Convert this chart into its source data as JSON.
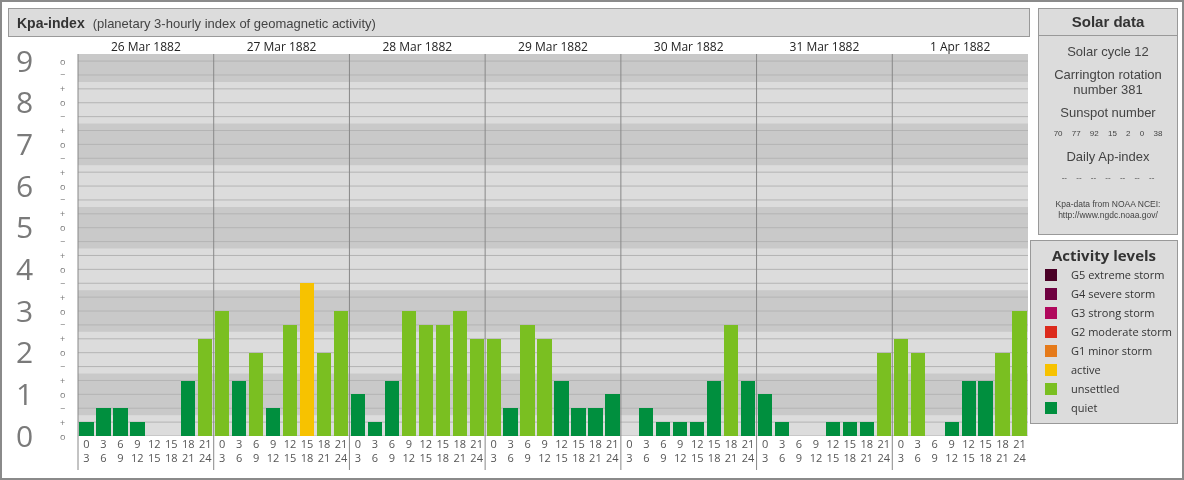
{
  "chart_data": [
    {
      "type": "bar",
      "title": "Kpa-index",
      "subtitle": "(planetary 3-hourly index of geomagnetic activity)",
      "legend_title": "Activity levels",
      "x": [
        "1882-03-26T01:30",
        "1882-03-26T04:30",
        "1882-03-26T07:30",
        "1882-03-26T10:30",
        "1882-03-26T13:30",
        "1882-03-26T16:30",
        "1882-03-26T19:30",
        "1882-03-26T22:30",
        "1882-03-27T01:30",
        "1882-03-27T04:30",
        "1882-03-27T07:30",
        "1882-03-27T10:30",
        "1882-03-27T13:30",
        "1882-03-27T16:30",
        "1882-03-27T19:30",
        "1882-03-27T22:30",
        "1882-03-28T01:30",
        "1882-03-28T04:30",
        "1882-03-28T07:30",
        "1882-03-28T10:30",
        "1882-03-28T13:30",
        "1882-03-28T16:30",
        "1882-03-28T19:30",
        "1882-03-28T22:30",
        "1882-03-29T01:30",
        "1882-03-29T04:30",
        "1882-03-29T07:30",
        "1882-03-29T10:30",
        "1882-03-29T13:30",
        "1882-03-29T16:30",
        "1882-03-29T19:30",
        "1882-03-29T22:30",
        "1882-03-30T01:30",
        "1882-03-30T04:30",
        "1882-03-30T07:30",
        "1882-03-30T10:30",
        "1882-03-30T13:30",
        "1882-03-30T16:30",
        "1882-03-30T19:30",
        "1882-03-30T22:30",
        "1882-03-31T01:30",
        "1882-03-31T04:30",
        "1882-03-31T07:30",
        "1882-03-31T10:30",
        "1882-03-31T13:30",
        "1882-03-31T16:30",
        "1882-03-31T19:30",
        "1882-03-31T22:30",
        "1882-04-01T01:30",
        "1882-04-01T04:30",
        "1882-04-01T07:30",
        "1882-04-01T10:30",
        "1882-04-01T13:30",
        "1882-04-01T16:30",
        "1882-04-01T19:30",
        "1882-04-01T22:30"
      ],
      "stacked": true,
      "series": [
        {
          "name": "G5 extreme storm",
          "color": "#4a0026",
          "values": [
            null,
            null,
            null,
            null,
            null,
            null,
            null,
            null,
            null,
            null,
            null,
            null,
            null,
            null,
            null,
            null,
            null,
            null,
            null,
            null,
            null,
            null,
            null,
            null,
            null,
            null,
            null,
            null,
            null,
            null,
            null,
            null,
            null,
            null,
            null,
            null,
            null,
            null,
            null,
            null,
            null,
            null,
            null,
            null,
            null,
            null,
            null,
            null,
            null,
            null,
            null,
            null,
            null,
            null,
            null,
            null
          ]
        },
        {
          "name": "G4 severe storm",
          "color": "#6e0040",
          "values": [
            null,
            null,
            null,
            null,
            null,
            null,
            null,
            null,
            null,
            null,
            null,
            null,
            null,
            null,
            null,
            null,
            null,
            null,
            null,
            null,
            null,
            null,
            null,
            null,
            null,
            null,
            null,
            null,
            null,
            null,
            null,
            null,
            null,
            null,
            null,
            null,
            null,
            null,
            null,
            null,
            null,
            null,
            null,
            null,
            null,
            null,
            null,
            null,
            null,
            null,
            null,
            null,
            null,
            null,
            null,
            null
          ]
        },
        {
          "name": "G3 strong storm",
          "color": "#b0085c",
          "values": [
            null,
            null,
            null,
            null,
            null,
            null,
            null,
            null,
            null,
            null,
            null,
            null,
            null,
            null,
            null,
            null,
            null,
            null,
            null,
            null,
            null,
            null,
            null,
            null,
            null,
            null,
            null,
            null,
            null,
            null,
            null,
            null,
            null,
            null,
            null,
            null,
            null,
            null,
            null,
            null,
            null,
            null,
            null,
            null,
            null,
            null,
            null,
            null,
            null,
            null,
            null,
            null,
            null,
            null,
            null,
            null
          ]
        },
        {
          "name": "G2 moderate storm",
          "color": "#dc2a1c",
          "values": [
            null,
            null,
            null,
            null,
            null,
            null,
            null,
            null,
            null,
            null,
            null,
            null,
            null,
            null,
            null,
            null,
            null,
            null,
            null,
            null,
            null,
            null,
            null,
            null,
            null,
            null,
            null,
            null,
            null,
            null,
            null,
            null,
            null,
            null,
            null,
            null,
            null,
            null,
            null,
            null,
            null,
            null,
            null,
            null,
            null,
            null,
            null,
            null,
            null,
            null,
            null,
            null,
            null,
            null,
            null,
            null
          ]
        },
        {
          "name": "G1 minor storm",
          "color": "#e57a1a",
          "values": [
            null,
            null,
            null,
            null,
            null,
            null,
            null,
            null,
            null,
            null,
            null,
            null,
            null,
            null,
            null,
            null,
            null,
            null,
            null,
            null,
            null,
            null,
            null,
            null,
            null,
            null,
            null,
            null,
            null,
            null,
            null,
            null,
            null,
            null,
            null,
            null,
            null,
            null,
            null,
            null,
            null,
            null,
            null,
            null,
            null,
            null,
            null,
            null,
            null,
            null,
            null,
            null,
            null,
            null,
            null,
            null
          ]
        },
        {
          "name": "active",
          "color": "#f7c200",
          "values": [
            null,
            null,
            null,
            null,
            null,
            null,
            null,
            null,
            null,
            null,
            null,
            null,
            null,
            3.67,
            null,
            null,
            null,
            null,
            null,
            null,
            null,
            null,
            null,
            null,
            null,
            null,
            null,
            null,
            null,
            null,
            null,
            null,
            null,
            null,
            null,
            null,
            null,
            null,
            null,
            null,
            null,
            null,
            null,
            null,
            null,
            null,
            null,
            null,
            null,
            null,
            null,
            null,
            null,
            null,
            null,
            null
          ]
        },
        {
          "name": "unsettled",
          "color": "#7abf21",
          "values": [
            null,
            null,
            null,
            null,
            null,
            null,
            null,
            2.33,
            3,
            null,
            2,
            null,
            2.67,
            null,
            2,
            3,
            null,
            null,
            null,
            3,
            2.67,
            2.67,
            3,
            2.33,
            2.33,
            null,
            2.67,
            2.33,
            null,
            null,
            null,
            null,
            null,
            null,
            null,
            null,
            null,
            null,
            2.67,
            null,
            null,
            null,
            null,
            null,
            null,
            null,
            null,
            2,
            2.33,
            2,
            null,
            null,
            null,
            null,
            2,
            3
          ]
        },
        {
          "name": "quiet",
          "color": "#008f3e",
          "values": [
            0.33,
            0.67,
            0.67,
            0.33,
            0,
            0,
            1.33,
            null,
            null,
            1.33,
            null,
            0.67,
            null,
            null,
            null,
            null,
            1,
            0.33,
            1.33,
            null,
            null,
            null,
            null,
            null,
            null,
            0.67,
            null,
            null,
            1.33,
            0.67,
            0.67,
            1,
            0,
            0.67,
            0.33,
            0.33,
            0.33,
            1.33,
            null,
            1.33,
            1,
            0.33,
            0,
            0,
            0.33,
            0.33,
            0.33,
            null,
            null,
            null,
            0,
            0.33,
            1.33,
            1.33,
            null,
            null
          ]
        }
      ],
      "xlim": [
        "1882-03-26T00:00",
        "1882-04-02T00:00"
      ],
      "xticks": [
        {
          "value": "1882-03-26T01:30",
          "label": "0\n3"
        },
        {
          "value": "1882-03-26T04:30",
          "label": "3\n6"
        },
        {
          "value": "1882-03-26T07:30",
          "label": "6\n9"
        },
        {
          "value": "1882-03-26T10:30",
          "label": "9\n12"
        },
        {
          "value": "1882-03-26T13:30",
          "label": "12\n15"
        },
        {
          "value": "1882-03-26T16:30",
          "label": "15\n18"
        },
        {
          "value": "1882-03-26T19:30",
          "label": "18\n21"
        },
        {
          "value": "1882-03-26T22:30",
          "label": "21\n24"
        },
        {
          "value": "1882-03-27T01:30",
          "label": "0\n3"
        },
        {
          "value": "1882-03-27T04:30",
          "label": "3\n6"
        },
        {
          "value": "1882-03-27T07:30",
          "label": "6\n9"
        },
        {
          "value": "1882-03-27T10:30",
          "label": "9\n12"
        },
        {
          "value": "1882-03-27T13:30",
          "label": "12\n15"
        },
        {
          "value": "1882-03-27T16:30",
          "label": "15\n18"
        },
        {
          "value": "1882-03-27T19:30",
          "label": "18\n21"
        },
        {
          "value": "1882-03-27T22:30",
          "label": "21\n24"
        },
        {
          "value": "1882-03-28T01:30",
          "label": "0\n3"
        },
        {
          "value": "1882-03-28T04:30",
          "label": "3\n6"
        },
        {
          "value": "1882-03-28T07:30",
          "label": "6\n9"
        },
        {
          "value": "1882-03-28T10:30",
          "label": "9\n12"
        },
        {
          "value": "1882-03-28T13:30",
          "label": "12\n15"
        },
        {
          "value": "1882-03-28T16:30",
          "label": "15\n18"
        },
        {
          "value": "1882-03-28T19:30",
          "label": "18\n21"
        },
        {
          "value": "1882-03-28T22:30",
          "label": "21\n24"
        },
        {
          "value": "1882-03-29T01:30",
          "label": "0\n3"
        },
        {
          "value": "1882-03-29T04:30",
          "label": "3\n6"
        },
        {
          "value": "1882-03-29T07:30",
          "label": "6\n9"
        },
        {
          "value": "1882-03-29T10:30",
          "label": "9\n12"
        },
        {
          "value": "1882-03-29T13:30",
          "label": "12\n15"
        },
        {
          "value": "1882-03-29T16:30",
          "label": "15\n18"
        },
        {
          "value": "1882-03-29T19:30",
          "label": "18\n21"
        },
        {
          "value": "1882-03-29T22:30",
          "label": "21\n24"
        },
        {
          "value": "1882-03-30T01:30",
          "label": "0\n3"
        },
        {
          "value": "1882-03-30T04:30",
          "label": "3\n6"
        },
        {
          "value": "1882-03-30T07:30",
          "label": "6\n9"
        },
        {
          "value": "1882-03-30T10:30",
          "label": "9\n12"
        },
        {
          "value": "1882-03-30T13:30",
          "label": "12\n15"
        },
        {
          "value": "1882-03-30T16:30",
          "label": "15\n18"
        },
        {
          "value": "1882-03-30T19:30",
          "label": "18\n21"
        },
        {
          "value": "1882-03-30T22:30",
          "label": "21\n24"
        },
        {
          "value": "1882-03-31T01:30",
          "label": "0\n3"
        },
        {
          "value": "1882-03-31T04:30",
          "label": "3\n6"
        },
        {
          "value": "1882-03-31T07:30",
          "label": "6\n9"
        },
        {
          "value": "1882-03-31T10:30",
          "label": "9\n12"
        },
        {
          "value": "1882-03-31T13:30",
          "label": "12\n15"
        },
        {
          "value": "1882-03-31T16:30",
          "label": "15\n18"
        },
        {
          "value": "1882-03-31T19:30",
          "label": "18\n21"
        },
        {
          "value": "1882-03-31T22:30",
          "label": "21\n24"
        },
        {
          "value": "1882-04-01T01:30",
          "label": "0\n3"
        },
        {
          "value": "1882-04-01T04:30",
          "label": "3\n6"
        },
        {
          "value": "1882-04-01T07:30",
          "label": "6\n9"
        },
        {
          "value": "1882-04-01T10:30",
          "label": "9\n12"
        },
        {
          "value": "1882-04-01T13:30",
          "label": "12\n15"
        },
        {
          "value": "1882-04-01T16:30",
          "label": "15\n18"
        },
        {
          "value": "1882-04-01T19:30",
          "label": "18\n21"
        },
        {
          "value": "1882-04-01T22:30",
          "label": "21\n24"
        }
      ],
      "x2lim": [
        "1882-03-26T00:00",
        "1882-04-02T00:00"
      ],
      "x2ticks": [
        {
          "value": "1882-03-26T12:00",
          "label": "26 Mar 1882"
        },
        {
          "value": "1882-03-27T12:00",
          "label": "27 Mar 1882"
        },
        {
          "value": "1882-03-28T12:00",
          "label": "28 Mar 1882"
        },
        {
          "value": "1882-03-29T12:00",
          "label": "29 Mar 1882"
        },
        {
          "value": "1882-03-30T12:00",
          "label": "30 Mar 1882"
        },
        {
          "value": "1882-03-31T12:00",
          "label": "31 Mar 1882"
        },
        {
          "value": "1882-04-01T12:00",
          "label": "1 Apr 1882"
        }
      ],
      "ylim": [
        0,
        9.17
      ],
      "yticks": [
        0,
        1,
        2,
        3,
        4,
        5,
        6,
        7,
        8,
        9
      ],
      "bands": [
        {
          "axis": "y",
          "from": 0.5,
          "to": 1.5,
          "color": "#c9c9c9"
        },
        {
          "axis": "y",
          "from": 2.5,
          "to": 3.5,
          "color": "#c9c9c9"
        },
        {
          "axis": "y",
          "from": 4.5,
          "to": 5.5,
          "color": "#c9c9c9"
        },
        {
          "axis": "y",
          "from": 6.5,
          "to": 7.5,
          "color": "#c9c9c9"
        },
        {
          "axis": "y",
          "from": 8.5,
          "to": 9.17,
          "color": "#c9c9c9"
        }
      ],
      "grid": true,
      "legend": "right",
      "annotations": [
        "o",
        "+",
        "−",
        "o",
        "+",
        "−",
        "o",
        "+",
        "−",
        "o",
        "+",
        "−",
        "o",
        "+",
        "−",
        "o",
        "+",
        "−",
        "o",
        "+",
        "−",
        "o",
        "+",
        "−",
        "o",
        "+",
        "−",
        "o"
      ]
    },
    {
      "type": "other",
      "title": "Solar data",
      "annotations": [
        "Solar cycle 12",
        "Carrington rotation number 381",
        "Sunspot number",
        "70 77 92 15 2 0 38",
        "Daily Ap-index",
        "-- -- -- -- -- -- --",
        "Kpa-data from NOAA NCEI: http://www.ngdc.noaa.gov/"
      ]
    }
  ]
}
